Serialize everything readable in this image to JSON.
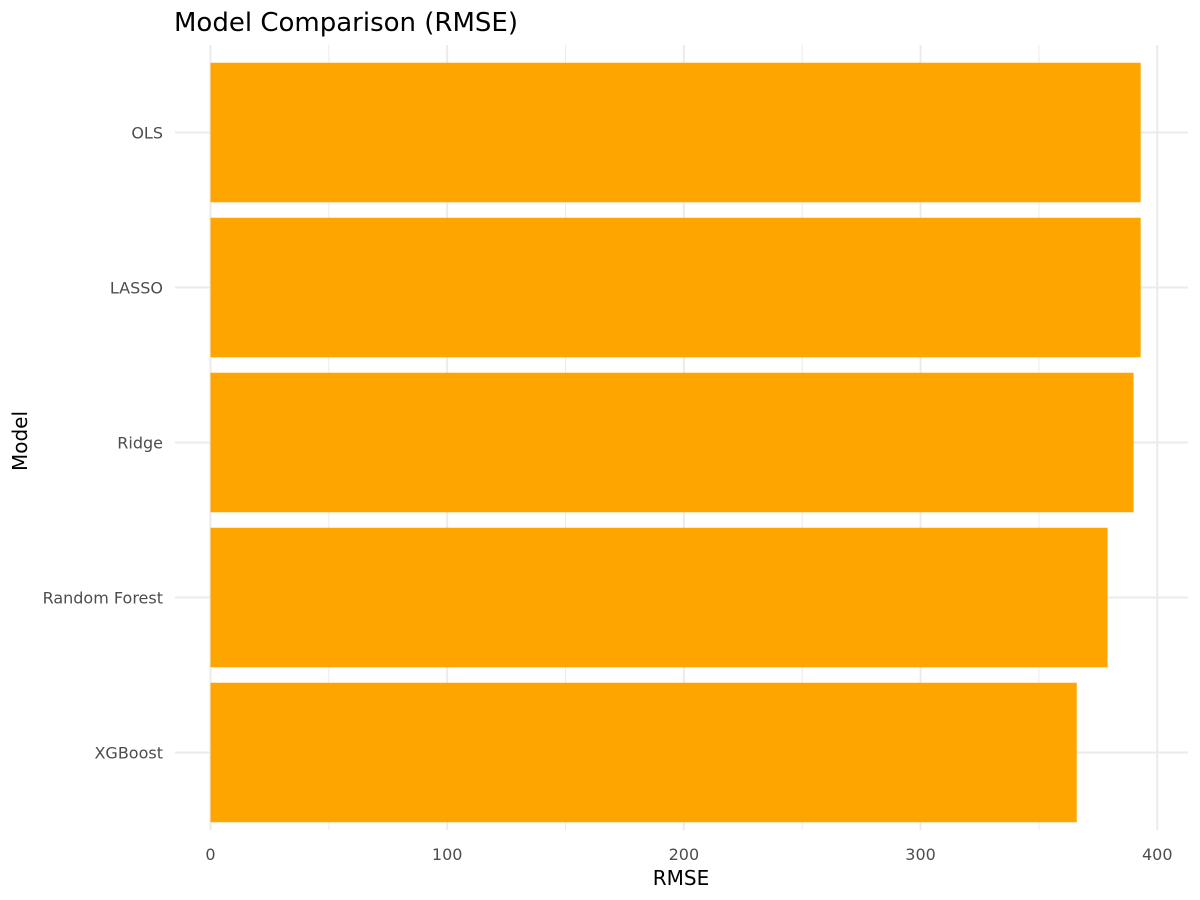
{
  "chart_data": {
    "type": "bar",
    "orientation": "horizontal",
    "title": "Model Comparison (RMSE)",
    "xlabel": "RMSE",
    "ylabel": "Model",
    "categories": [
      "XGBoost",
      "Random Forest",
      "Ridge",
      "LASSO",
      "OLS"
    ],
    "values": [
      366,
      379,
      390,
      393,
      393
    ],
    "xlim": [
      -15,
      413
    ],
    "x_ticks": [
      0,
      100,
      200,
      300,
      400
    ],
    "x_minor_ticks": [
      50,
      150,
      250,
      350
    ],
    "bar_color": "#FFA500",
    "grid": true,
    "legend": "none"
  }
}
